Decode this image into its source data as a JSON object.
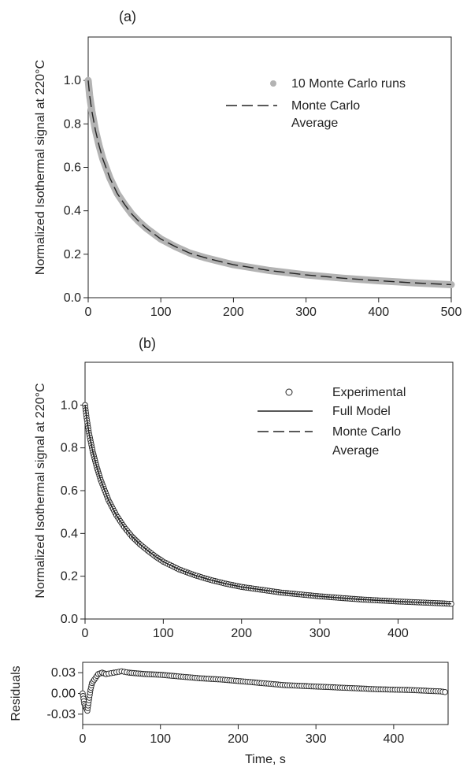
{
  "chart_data": [
    {
      "type": "scatter",
      "panel_label": "(a)",
      "ylabel": "Normalized Isothermal signal at 220°C",
      "xlabel": "",
      "xlim": [
        0,
        500
      ],
      "ylim": [
        0,
        1.2
      ],
      "xticks": [
        0,
        100,
        200,
        300,
        400,
        500
      ],
      "yticks": [
        0.0,
        0.2,
        0.4,
        0.6,
        0.8,
        1.0
      ],
      "tick_labels_x": [
        "0",
        "100",
        "200",
        "300",
        "400",
        "500"
      ],
      "tick_labels_y": [
        "0.0",
        "0.2",
        "0.4",
        "0.6",
        "0.8",
        "1.0"
      ],
      "legend_position": "top-right",
      "grid": false,
      "series": [
        {
          "name": "10 Monte Carlo runs",
          "style": "grey-dots",
          "color": "#b3b3b3",
          "x": [
            0,
            2,
            5,
            10,
            15,
            20,
            30,
            40,
            50,
            60,
            70,
            80,
            90,
            100,
            120,
            140,
            160,
            180,
            200,
            250,
            300,
            350,
            400,
            450,
            500
          ],
          "y": [
            1.0,
            0.93,
            0.86,
            0.77,
            0.7,
            0.64,
            0.55,
            0.48,
            0.43,
            0.385,
            0.35,
            0.32,
            0.295,
            0.27,
            0.235,
            0.205,
            0.185,
            0.168,
            0.152,
            0.125,
            0.105,
            0.09,
            0.078,
            0.068,
            0.06
          ]
        },
        {
          "name": "Monte Carlo\nAverage",
          "name_lines": [
            "Monte Carlo",
            "Average"
          ],
          "style": "dashed-line",
          "color": "#222222",
          "x": [
            0,
            2,
            5,
            10,
            15,
            20,
            30,
            40,
            50,
            60,
            70,
            80,
            90,
            100,
            120,
            140,
            160,
            180,
            200,
            250,
            300,
            350,
            400,
            450,
            500
          ],
          "y": [
            1.0,
            0.93,
            0.86,
            0.77,
            0.7,
            0.64,
            0.55,
            0.48,
            0.43,
            0.385,
            0.35,
            0.32,
            0.295,
            0.27,
            0.235,
            0.205,
            0.185,
            0.168,
            0.152,
            0.125,
            0.105,
            0.09,
            0.078,
            0.068,
            0.06
          ]
        }
      ]
    },
    {
      "type": "scatter",
      "panel_label": "(b)",
      "ylabel": "Normalized Isothermal signal at 220°C",
      "xlabel": "",
      "xlim": [
        0,
        470
      ],
      "ylim": [
        0,
        1.2
      ],
      "xticks": [
        0,
        100,
        200,
        300,
        400
      ],
      "yticks": [
        0.0,
        0.2,
        0.4,
        0.6,
        0.8,
        1.0
      ],
      "tick_labels_x": [
        "0",
        "100",
        "200",
        "300",
        "400"
      ],
      "tick_labels_y": [
        "0.0",
        "0.2",
        "0.4",
        "0.6",
        "0.8",
        "1.0"
      ],
      "legend_position": "top-right",
      "grid": false,
      "series": [
        {
          "name": "Experimental",
          "style": "open-circles",
          "color": "#222222",
          "x": [
            0,
            2,
            5,
            10,
            15,
            20,
            30,
            40,
            50,
            60,
            70,
            80,
            90,
            100,
            120,
            140,
            160,
            180,
            200,
            250,
            300,
            350,
            400,
            450,
            468
          ],
          "y": [
            1.0,
            0.94,
            0.87,
            0.78,
            0.71,
            0.65,
            0.555,
            0.485,
            0.43,
            0.385,
            0.35,
            0.32,
            0.292,
            0.268,
            0.232,
            0.205,
            0.183,
            0.165,
            0.15,
            0.124,
            0.106,
            0.092,
            0.082,
            0.074,
            0.071
          ]
        },
        {
          "name": "Full Model",
          "style": "solid-line",
          "color": "#222222",
          "x": [
            0,
            2,
            5,
            10,
            15,
            20,
            30,
            40,
            50,
            60,
            70,
            80,
            90,
            100,
            120,
            140,
            160,
            180,
            200,
            250,
            300,
            350,
            400,
            450,
            468
          ],
          "y": [
            1.0,
            0.94,
            0.87,
            0.78,
            0.71,
            0.65,
            0.555,
            0.485,
            0.43,
            0.385,
            0.35,
            0.32,
            0.292,
            0.268,
            0.232,
            0.205,
            0.183,
            0.165,
            0.15,
            0.124,
            0.106,
            0.092,
            0.082,
            0.074,
            0.071
          ]
        },
        {
          "name": "Monte Carlo\nAverage",
          "name_lines": [
            "Monte Carlo",
            "Average"
          ],
          "style": "dashed-line",
          "color": "#222222",
          "x": [
            0,
            2,
            5,
            10,
            15,
            20,
            30,
            40,
            50,
            60,
            70,
            80,
            90,
            100,
            120,
            140,
            160,
            180,
            200,
            250,
            300,
            350,
            400,
            450,
            468
          ],
          "y": [
            1.0,
            0.94,
            0.87,
            0.78,
            0.71,
            0.65,
            0.555,
            0.485,
            0.43,
            0.385,
            0.35,
            0.32,
            0.292,
            0.268,
            0.232,
            0.205,
            0.183,
            0.165,
            0.15,
            0.124,
            0.106,
            0.092,
            0.082,
            0.074,
            0.071
          ]
        }
      ]
    },
    {
      "type": "scatter",
      "ylabel": "Residuals",
      "xlabel": "Time, s",
      "xlim": [
        0,
        470
      ],
      "ylim": [
        -0.045,
        0.045
      ],
      "xticks": [
        0,
        100,
        200,
        300,
        400
      ],
      "yticks": [
        -0.03,
        0.0,
        0.03
      ],
      "tick_labels_x": [
        "0",
        "100",
        "200",
        "300",
        "400"
      ],
      "tick_labels_y": [
        "-0.03",
        "0.00",
        "0.03"
      ],
      "grid": false,
      "series": [
        {
          "style": "open-circles",
          "color": "#222222",
          "x": [
            0,
            2,
            4,
            6,
            8,
            10,
            12,
            15,
            20,
            25,
            30,
            40,
            50,
            60,
            80,
            100,
            120,
            150,
            180,
            200,
            230,
            260,
            300,
            340,
            380,
            420,
            460,
            466
          ],
          "y": [
            0.0,
            -0.015,
            -0.02,
            -0.025,
            -0.01,
            0.005,
            0.015,
            0.02,
            0.028,
            0.03,
            0.028,
            0.03,
            0.032,
            0.03,
            0.028,
            0.027,
            0.025,
            0.022,
            0.02,
            0.018,
            0.015,
            0.012,
            0.01,
            0.008,
            0.006,
            0.005,
            0.003,
            0.002
          ]
        }
      ]
    }
  ]
}
